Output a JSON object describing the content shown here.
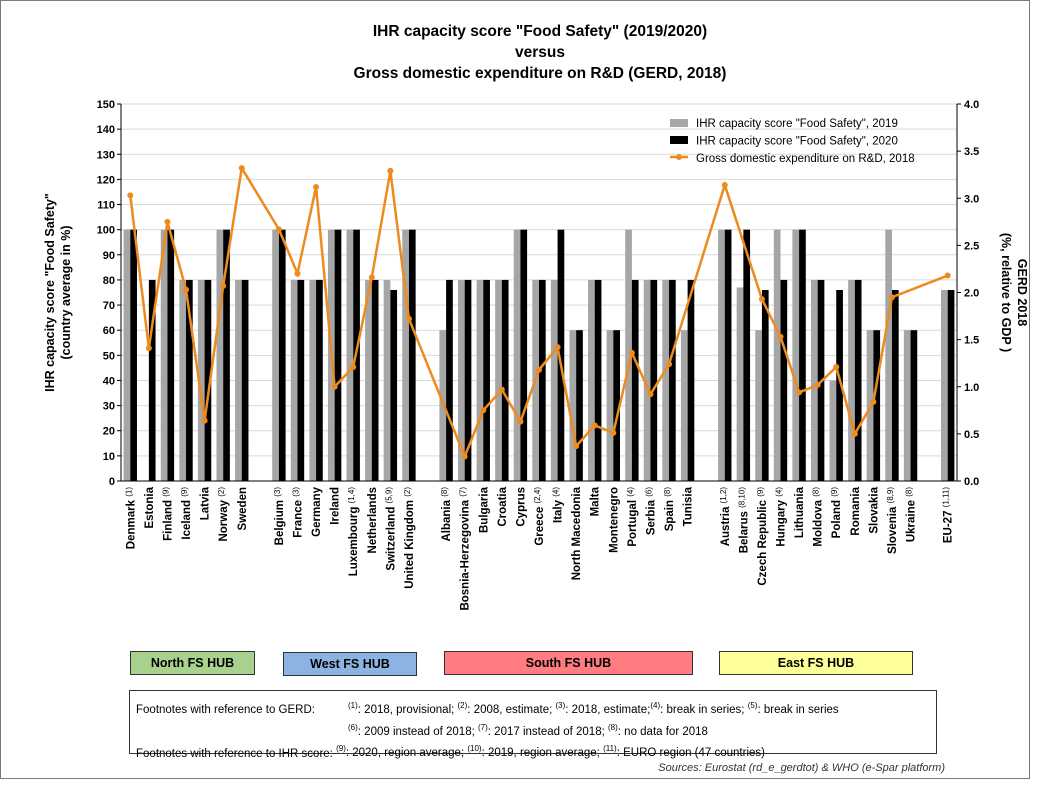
{
  "chart_data": {
    "type": "bar",
    "title": [
      "IHR capacity score \"Food Safety\" (2019/2020)",
      "versus",
      "Gross domestic expenditure on R&D (GERD, 2018)"
    ],
    "ylabel": [
      "IHR capacity score \"Food Safety\"",
      "(country average in %)"
    ],
    "y2label": [
      "GERD 2018",
      "(%, relative to GDP )"
    ],
    "ylim": [
      0,
      150
    ],
    "y_ticks": [
      0,
      10,
      20,
      30,
      40,
      50,
      60,
      70,
      80,
      90,
      100,
      110,
      120,
      130,
      140,
      150
    ],
    "y2lim": [
      0,
      4
    ],
    "y2_ticks": [
      "0.0",
      "0.5",
      "1.0",
      "1.5",
      "2.0",
      "2.5",
      "3.0",
      "3.5",
      "4.0"
    ],
    "grid": true,
    "legend_position": "top-right",
    "colors": {
      "s2019": "#a6a6a6",
      "s2020": "#000000",
      "gerd": "#ed8b1f"
    },
    "series": [
      {
        "name": "IHR capacity score \"Food Safety\", 2019"
      },
      {
        "name": "IHR capacity score \"Food Safety\", 2020"
      },
      {
        "name": "Gross domestic expenditure on R&D, 2018"
      }
    ],
    "categories": [
      {
        "label": "Denmark",
        "sup": "(1)",
        "v2019": 100,
        "v2020": 100,
        "gerd": 3.03
      },
      {
        "label": "Estonia",
        "sup": "",
        "v2019": null,
        "v2020": 80,
        "gerd": 1.41
      },
      {
        "label": "Finland",
        "sup": "(9)",
        "v2019": 100,
        "v2020": 100,
        "gerd": 2.75
      },
      {
        "label": "Iceland",
        "sup": "(9)",
        "v2019": 80,
        "v2020": 80,
        "gerd": 2.03
      },
      {
        "label": "Latvia",
        "sup": "",
        "v2019": 80,
        "v2020": 80,
        "gerd": 0.64
      },
      {
        "label": "Norway",
        "sup": "(2)",
        "v2019": 100,
        "v2020": 100,
        "gerd": 2.07
      },
      {
        "label": "Sweden",
        "sup": "",
        "v2019": 80,
        "v2020": 80,
        "gerd": 3.32
      },
      {
        "gap": true
      },
      {
        "label": "Belgium",
        "sup": "(3)",
        "v2019": 100,
        "v2020": 100,
        "gerd": 2.67
      },
      {
        "label": "France",
        "sup": "(3)",
        "v2019": 80,
        "v2020": 80,
        "gerd": 2.2
      },
      {
        "label": "Germany",
        "sup": "",
        "v2019": 80,
        "v2020": 80,
        "gerd": 3.12
      },
      {
        "label": "Ireland",
        "sup": "",
        "v2019": 100,
        "v2020": 100,
        "gerd": 1.0
      },
      {
        "label": "Luxembourg",
        "sup": "(1,4)",
        "v2019": 100,
        "v2020": 100,
        "gerd": 1.21
      },
      {
        "label": "Netherlands",
        "sup": "",
        "v2019": 80,
        "v2020": 80,
        "gerd": 2.16
      },
      {
        "label": "Switzerland",
        "sup": "(5,9)",
        "v2019": 80,
        "v2020": 76,
        "gerd": 3.29
      },
      {
        "label": "United Kingdom",
        "sup": "(2)",
        "v2019": 100,
        "v2020": 100,
        "gerd": 1.72
      },
      {
        "gap": true
      },
      {
        "label": "Albania",
        "sup": "(8)",
        "v2019": 60,
        "v2020": 80,
        "gerd": null
      },
      {
        "label": "Bosnia-Herzegovina",
        "sup": "(7)",
        "v2019": 80,
        "v2020": 80,
        "gerd": 0.26
      },
      {
        "label": "Bulgaria",
        "sup": "",
        "v2019": 80,
        "v2020": 80,
        "gerd": 0.75
      },
      {
        "label": "Croatia",
        "sup": "",
        "v2019": 80,
        "v2020": 80,
        "gerd": 0.97
      },
      {
        "label": "Cyprus",
        "sup": "",
        "v2019": 100,
        "v2020": 100,
        "gerd": 0.63
      },
      {
        "label": "Greece",
        "sup": "(2,4)",
        "v2019": 80,
        "v2020": 80,
        "gerd": 1.18
      },
      {
        "label": "Italy",
        "sup": "(4)",
        "v2019": 80,
        "v2020": 100,
        "gerd": 1.42
      },
      {
        "label": "North Macedonia",
        "sup": "",
        "v2019": 60,
        "v2020": 60,
        "gerd": 0.37
      },
      {
        "label": "Malta",
        "sup": "",
        "v2019": 80,
        "v2020": 80,
        "gerd": 0.59
      },
      {
        "label": "Montenegro",
        "sup": "",
        "v2019": 60,
        "v2020": 60,
        "gerd": 0.51
      },
      {
        "label": "Portugal",
        "sup": "(4)",
        "v2019": 100,
        "v2020": 80,
        "gerd": 1.36
      },
      {
        "label": "Serbia",
        "sup": "(6)",
        "v2019": 80,
        "v2020": 80,
        "gerd": 0.92
      },
      {
        "label": "Spain",
        "sup": "(8)",
        "v2019": 80,
        "v2020": 80,
        "gerd": 1.24
      },
      {
        "label": "Tunisia",
        "sup": "",
        "v2019": 60,
        "v2020": 80,
        "gerd": null
      },
      {
        "gap": true
      },
      {
        "label": "Austria",
        "sup": "(1,2)",
        "v2019": 100,
        "v2020": 100,
        "gerd": 3.14
      },
      {
        "label": "Belarus",
        "sup": "(8,10)",
        "v2019": 77,
        "v2020": 100,
        "gerd": null
      },
      {
        "label": "Czech Republic",
        "sup": "(9)",
        "v2019": 60,
        "v2020": 76,
        "gerd": 1.93
      },
      {
        "label": "Hungary",
        "sup": "(4)",
        "v2019": 100,
        "v2020": 80,
        "gerd": 1.53
      },
      {
        "label": "Lithuania",
        "sup": "",
        "v2019": 100,
        "v2020": 100,
        "gerd": 0.94
      },
      {
        "label": "Moldova",
        "sup": "(8)",
        "v2019": 80,
        "v2020": 80,
        "gerd": 1.02
      },
      {
        "label": "Poland",
        "sup": "(9)",
        "v2019": 40,
        "v2020": 76,
        "gerd": 1.21
      },
      {
        "label": "Romania",
        "sup": "",
        "v2019": 80,
        "v2020": 80,
        "gerd": 0.5
      },
      {
        "label": "Slovakia",
        "sup": "",
        "v2019": 60,
        "v2020": 60,
        "gerd": 0.84
      },
      {
        "label": "Slovenia",
        "sup": "(8,9)",
        "v2019": 100,
        "v2020": 76,
        "gerd": 1.95
      },
      {
        "label": "Ukraine",
        "sup": "(8)",
        "v2019": 60,
        "v2020": 60,
        "gerd": null
      },
      {
        "gap": true
      },
      {
        "label": "EU-27",
        "sup": "(1,11)",
        "v2019": 76,
        "v2020": 76,
        "gerd": 2.18
      }
    ]
  },
  "hubs": [
    {
      "label": "North FS HUB",
      "color": "#a9d18e"
    },
    {
      "label": "West FS HUB",
      "color": "#8db3e2"
    },
    {
      "label": "South FS HUB",
      "color": "#ff7c80"
    },
    {
      "label": "East FS HUB",
      "color": "#ffff99"
    }
  ],
  "footnotes": {
    "gerd_label": "Footnotes with reference  to GERD:",
    "gerd_line1": [
      {
        "sup": "(1)",
        "text": ": 2018, provisional; "
      },
      {
        "sup": "(2)",
        "text": ": 2008, estimate; "
      },
      {
        "sup": "(3)",
        "text": ": 2018, estimate;"
      },
      {
        "sup": "(4)",
        "text": ": break in series; "
      },
      {
        "sup": "(5)",
        "text": ": break in series"
      }
    ],
    "gerd_line2": [
      {
        "sup": "(6)",
        "text": ": 2009 instead of 2018; "
      },
      {
        "sup": "(7)",
        "text": ": 2017 instead of 2018; "
      },
      {
        "sup": "(8)",
        "text": ": no data for 2018"
      }
    ],
    "ihr_label": "Footnotes with reference to IHR score:",
    "ihr_line": [
      {
        "sup": "(9)",
        "text": ": 2020, region average; "
      },
      {
        "sup": "(10)",
        "text": ": 2019, region average; "
      },
      {
        "sup": "(11)",
        "text": ": EURO region (47 countries)"
      }
    ]
  },
  "sources": "Sources: Eurostat (rd_e_gerdtot) & WHO (e-Spar platform)"
}
